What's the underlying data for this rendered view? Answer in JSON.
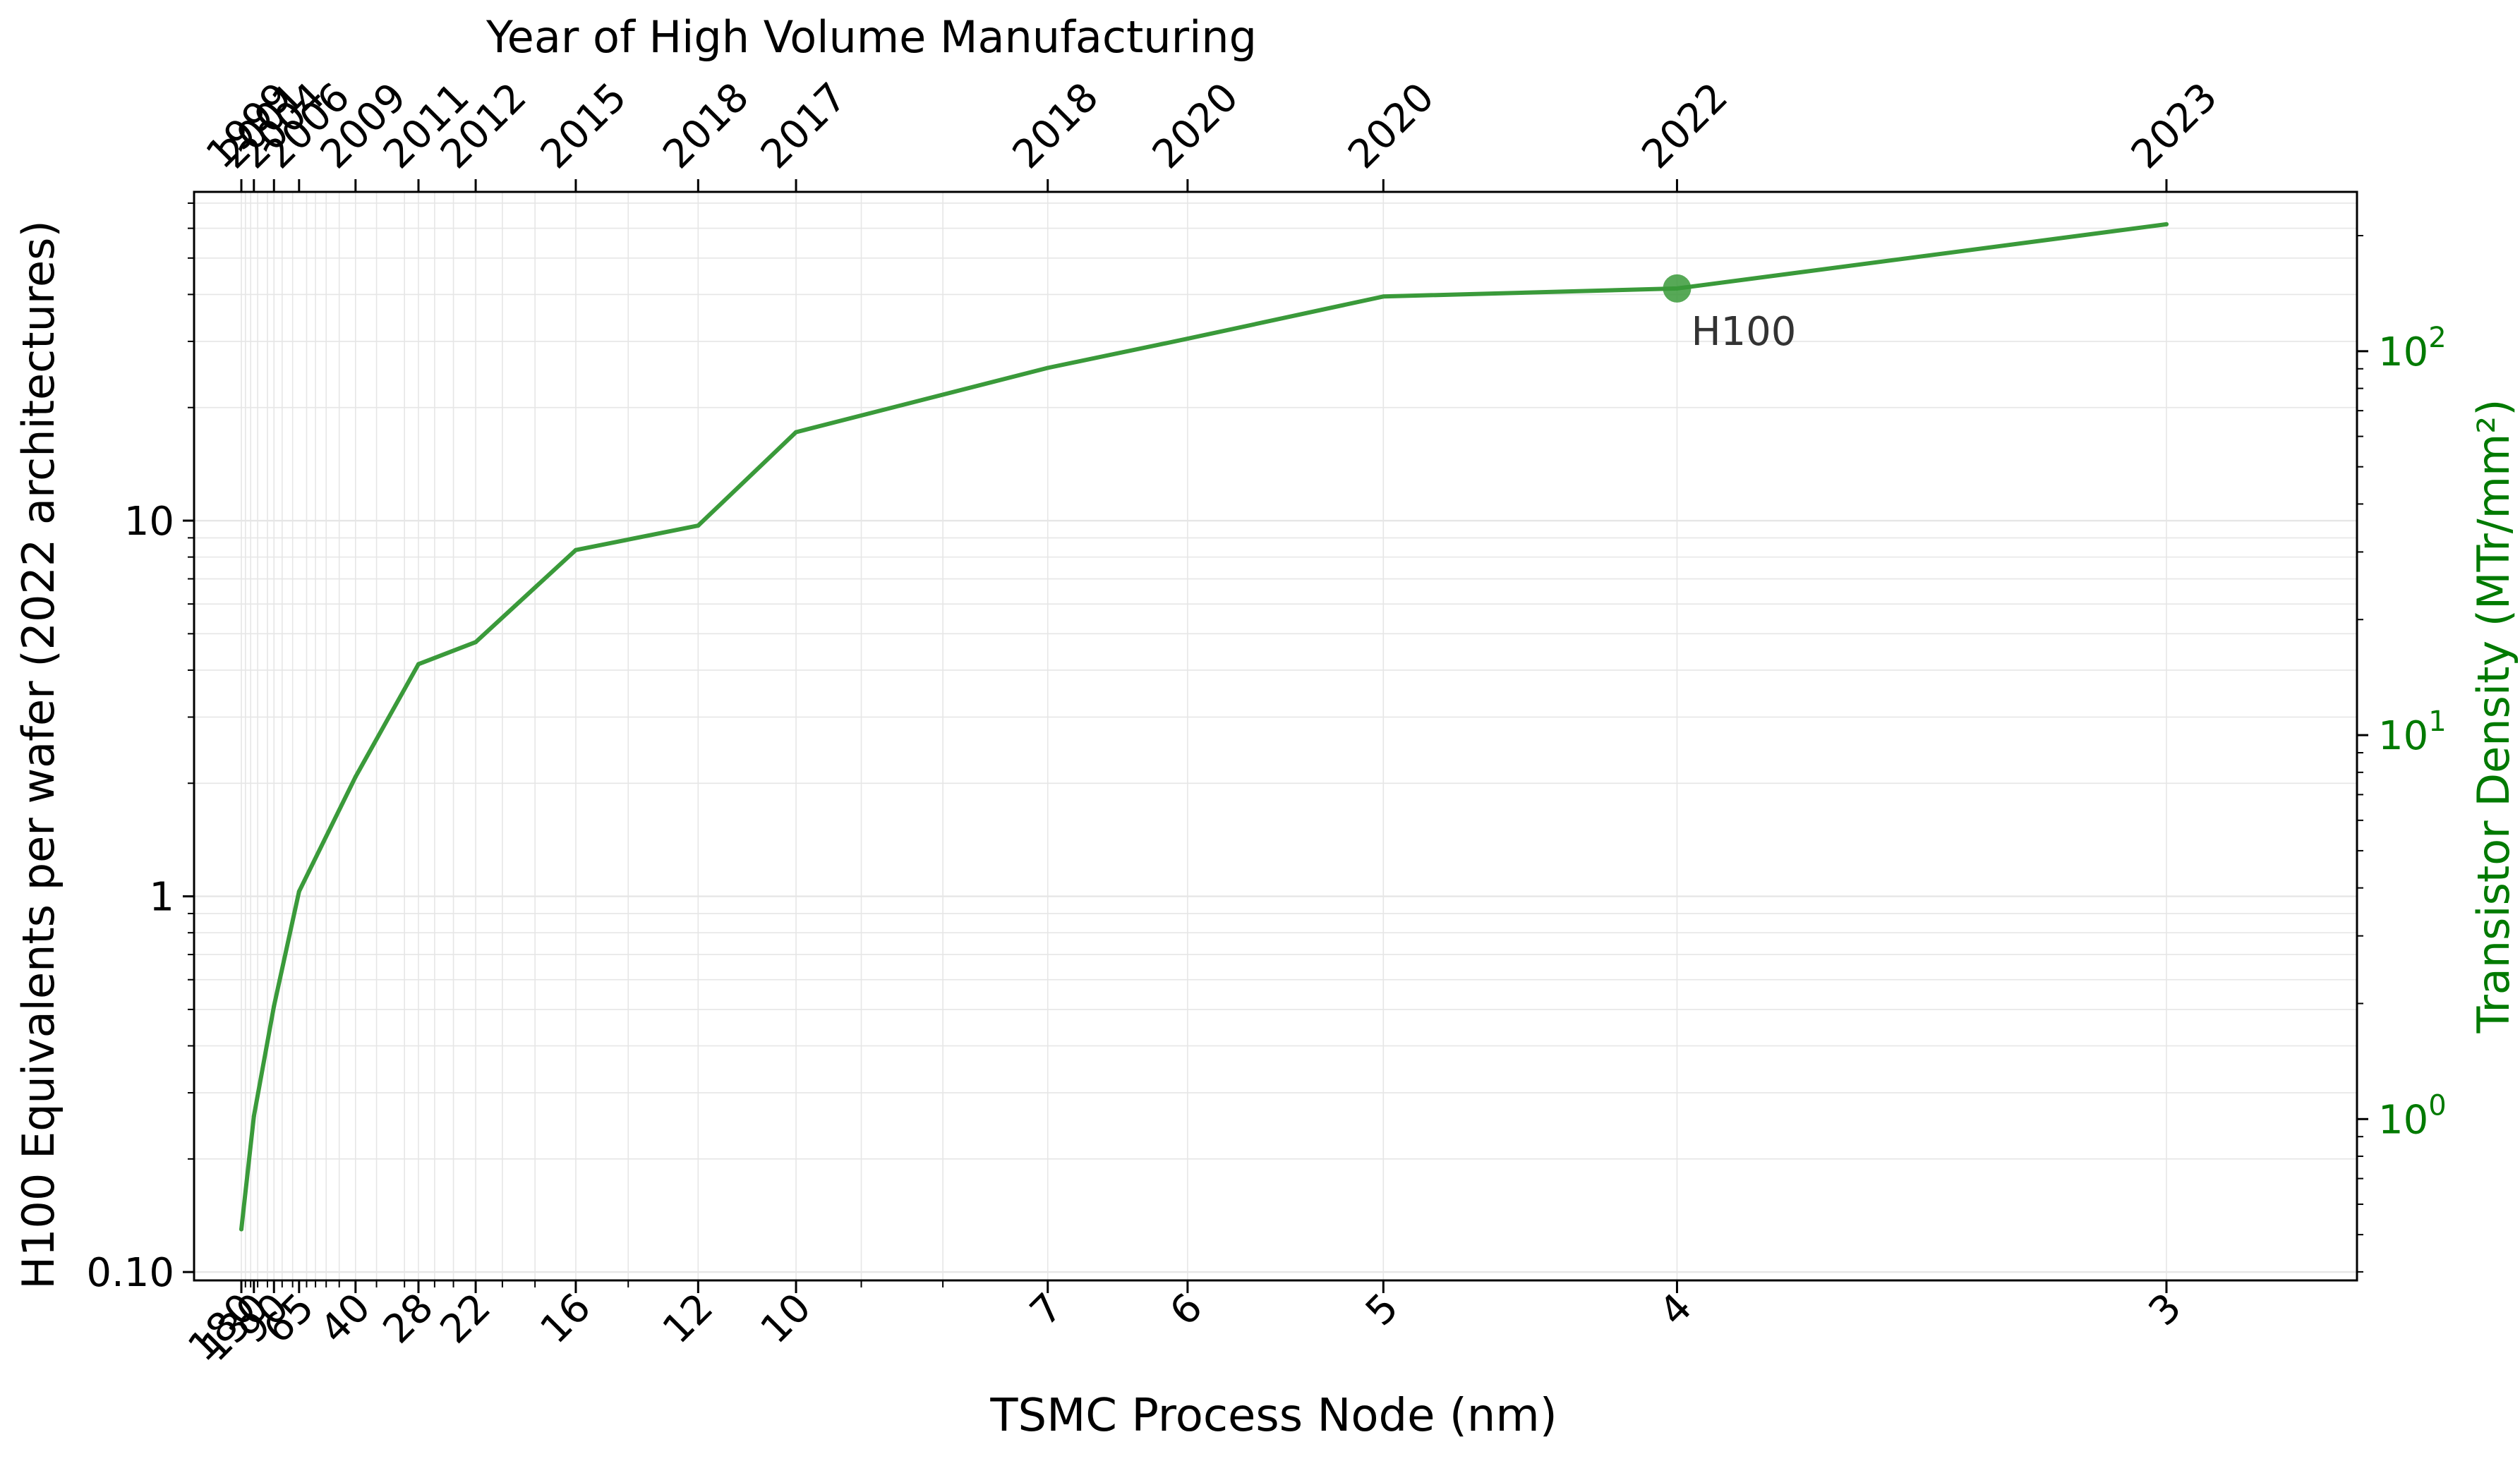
{
  "chart_data": {
    "type": "line",
    "title": "Year of High Volume Manufacturing",
    "xlabel": "TSMC Process Node (nm)",
    "ylabel": "H100 Equivalents per wafer (2022 architectures)",
    "y2label": "Transistor Density (MTr/mm²)",
    "x_scale": "reciprocal",
    "y_scale": "log",
    "y2_scale": "log",
    "grid": true,
    "ylim": [
      0.095,
      75
    ],
    "y2lim": [
      0.38,
      260
    ],
    "x_ticks": [
      "180",
      "130",
      "90",
      "65",
      "40",
      "28",
      "22",
      "16",
      "12",
      "10",
      "7",
      "6",
      "5",
      "4",
      "3"
    ],
    "x_ticks_top": [
      "1999",
      "2001",
      "2004",
      "2006",
      "2009",
      "2011",
      "2012",
      "2015",
      "2018",
      "2017",
      "2018",
      "2020",
      "2020",
      "2022",
      "2023"
    ],
    "y_ticks": [
      "0.10",
      "1",
      "10"
    ],
    "y2_ticks": [
      {
        "base": "10",
        "exp": "0"
      },
      {
        "base": "10",
        "exp": "1"
      },
      {
        "base": "10",
        "exp": "2"
      }
    ],
    "series": [
      {
        "color": "#3a9a3a",
        "x": [
          180,
          130,
          90,
          65,
          40,
          28,
          22,
          16,
          12,
          10,
          7,
          6,
          5,
          4,
          3
        ],
        "values": [
          0.13,
          0.26,
          0.51,
          1.03,
          2.08,
          4.15,
          4.75,
          8.35,
          9.7,
          17.2,
          25.5,
          30.5,
          39.5,
          41.5,
          61.5
        ]
      }
    ],
    "annotations": [
      {
        "label": "H100",
        "x": 4,
        "y": 41.5
      }
    ],
    "colors": {
      "line": "#3a9a3a",
      "marker": "#3a9a3a",
      "right_axis": "#007a00",
      "grid": "#e6e6e6",
      "text": "#000000",
      "annotation": "#333333"
    }
  }
}
